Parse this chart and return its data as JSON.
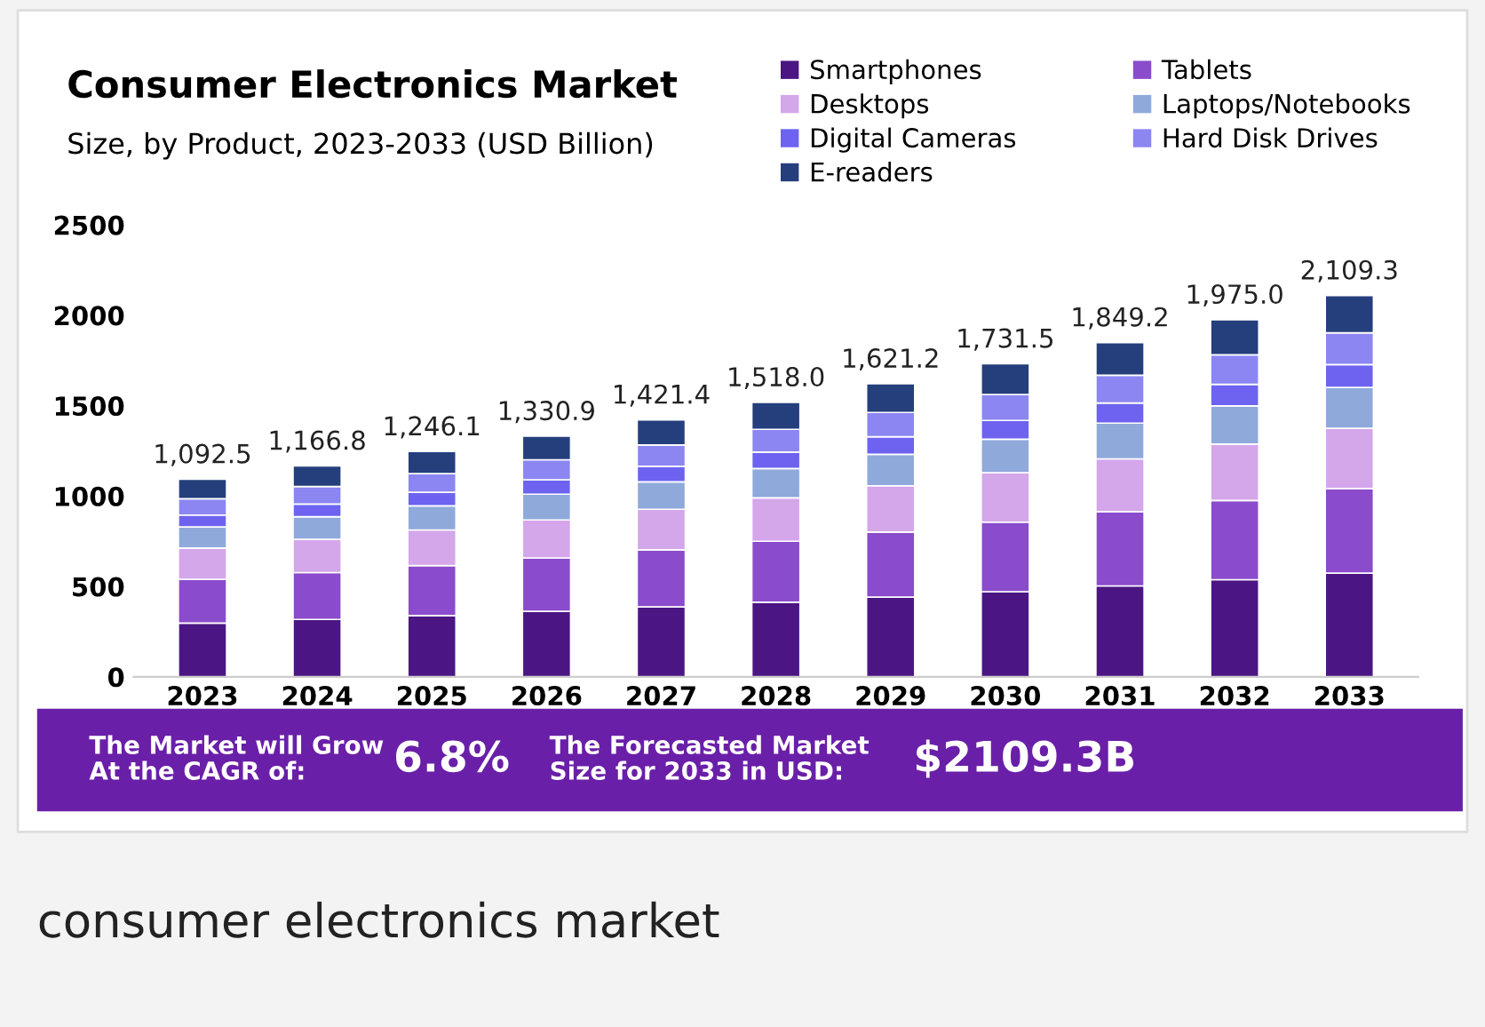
{
  "chart_data": {
    "type": "bar",
    "stacked": true,
    "title": "Consumer Electronics Market",
    "subtitle": "Size, by Product, 2023-2033 (USD Billion)",
    "categories": [
      "2023",
      "2024",
      "2025",
      "2026",
      "2027",
      "2028",
      "2029",
      "2030",
      "2031",
      "2032",
      "2033"
    ],
    "series": [
      {
        "name": "Smartphones",
        "color": "#4b1683",
        "values": [
          297.2,
          317.4,
          338.9,
          362.0,
          386.6,
          412.9,
          441.0,
          471.0,
          503.0,
          537.2,
          573.7
        ]
      },
      {
        "name": "Tablets",
        "color": "#8a4bcc",
        "values": [
          242.5,
          259.0,
          276.6,
          295.5,
          315.6,
          337.0,
          359.9,
          384.4,
          410.5,
          438.5,
          468.3
        ]
      },
      {
        "name": "Desktops",
        "color": "#d4a6ea",
        "values": [
          172.6,
          184.4,
          196.9,
          210.3,
          224.6,
          239.8,
          256.1,
          273.6,
          292.2,
          312.1,
          333.3
        ]
      },
      {
        "name": "Laptops/Notebooks",
        "color": "#8fa9db",
        "values": [
          116.9,
          124.8,
          133.3,
          142.4,
          152.1,
          162.4,
          173.5,
          185.3,
          197.9,
          211.3,
          225.7
        ]
      },
      {
        "name": "Digital Cameras",
        "color": "#6d63f0",
        "values": [
          65.6,
          70.0,
          74.8,
          79.9,
          85.3,
          91.1,
          97.3,
          103.9,
          111.0,
          118.5,
          126.6
        ]
      },
      {
        "name": "Hard Disk Drives",
        "color": "#8b86f2",
        "values": [
          90.7,
          96.8,
          103.4,
          110.5,
          118.0,
          126.0,
          134.6,
          143.7,
          153.5,
          163.9,
          175.1
        ]
      },
      {
        "name": "E-readers",
        "color": "#253f7d",
        "values": [
          107.0,
          114.4,
          122.2,
          130.3,
          139.2,
          148.8,
          158.8,
          169.6,
          181.1,
          193.5,
          206.6
        ]
      }
    ],
    "totals": [
      "1,092.5",
      "1,166.8",
      "1,246.1",
      "1,330.9",
      "1,421.4",
      "1,518.0",
      "1,621.2",
      "1,731.5",
      "1,849.2",
      "1,975.0",
      "2,109.3"
    ],
    "ylim": [
      0,
      2500
    ],
    "yticks": [
      0,
      500,
      1000,
      1500,
      2000,
      2500
    ],
    "grid": false,
    "legend": "top right",
    "annotations": [
      "The Market will Grow\nAt the CAGR of:",
      "6.8%",
      "The Forecasted Market\nSize for 2033 in USD:",
      "$2109.3B",
      "consumer electronics market"
    ]
  }
}
